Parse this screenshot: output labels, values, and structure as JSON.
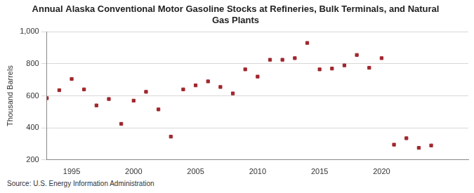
{
  "chart_data": {
    "type": "scatter",
    "title": [
      "Annual Alaska Conventional Motor Gasoline Stocks at Refineries, Bulk Terminals, and Natural",
      "Gas Plants"
    ],
    "y_label": "Thousand Barrels",
    "source": "Source: U.S. Energy Information Administration",
    "x": [
      1993,
      1994,
      1995,
      1996,
      1997,
      1998,
      1999,
      2000,
      2001,
      2002,
      2003,
      2004,
      2005,
      2006,
      2007,
      2008,
      2009,
      2010,
      2011,
      2012,
      2013,
      2014,
      2015,
      2016,
      2017,
      2018,
      2019,
      2020,
      2021,
      2022,
      2023,
      2024
    ],
    "values": [
      585,
      635,
      705,
      640,
      540,
      580,
      425,
      570,
      625,
      515,
      345,
      640,
      665,
      690,
      655,
      615,
      765,
      720,
      825,
      825,
      835,
      930,
      765,
      770,
      790,
      855,
      775,
      835,
      295,
      335,
      275,
      290
    ],
    "color": "#a0272e",
    "marker": "square",
    "xlim": [
      1993,
      2027
    ],
    "xticks": [
      1995,
      2000,
      2005,
      2010,
      2015,
      2020
    ],
    "ylim": [
      200,
      1000
    ],
    "yticks": [
      200,
      400,
      600,
      800,
      {
        "value": 1000,
        "label": "1,000"
      }
    ],
    "grid": true
  }
}
